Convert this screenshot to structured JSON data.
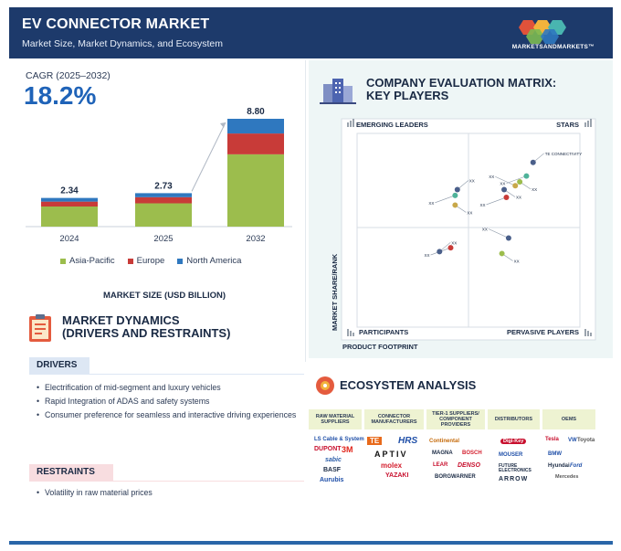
{
  "header": {
    "title": "EV CONNECTOR MARKET",
    "subtitle": "Market Size, Market Dynamics, and Ecosystem",
    "brand": "MARKETSANDMARKETS™"
  },
  "cagr": {
    "label": "CAGR (2025–2032)",
    "value": "18.2%"
  },
  "colors": {
    "asia_pacific": "#9cbd4d",
    "europe": "#c83b38",
    "north_america": "#2f78bf",
    "header": "#1d3a6b"
  },
  "chart_data": {
    "type": "bar",
    "stacked": true,
    "categories": [
      "2024",
      "2025",
      "2032"
    ],
    "totals": [
      2.34,
      2.73,
      8.8
    ],
    "total_labels": [
      "2.34",
      "2.73",
      "8.80"
    ],
    "series": [
      {
        "name": "Asia-Pacific",
        "values": [
          1.64,
          1.9,
          5.9
        ]
      },
      {
        "name": "Europe",
        "values": [
          0.4,
          0.5,
          1.7
        ]
      },
      {
        "name": "North America",
        "values": [
          0.3,
          0.33,
          1.2
        ]
      }
    ],
    "xlabel": "MARKET SIZE (USD BILLION)",
    "legend_position": "bottom"
  },
  "dynamics": {
    "title_line1": "MARKET DYNAMICS",
    "title_line2": "(DRIVERS AND RESTRAINTS)",
    "drivers_label": "DRIVERS",
    "drivers": [
      "Electrification of mid-segment and luxury vehicles",
      "Rapid Integration of ADAS and safety systems",
      "Consumer preference for seamless and interactive driving experiences"
    ],
    "restraints_label": "RESTRAINTS",
    "restraints": [
      "Volatility in raw material prices"
    ]
  },
  "matrix": {
    "title_line1": "COMPANY EVALUATION MATRIX:",
    "title_line2": "KEY PLAYERS",
    "quadrants": {
      "top_left": "EMERGING LEADERS",
      "top_right": "STARS",
      "bottom_left": "PARTICIPANTS",
      "bottom_right": "PERVASIVE PLAYERS"
    },
    "y_axis": "MARKET SHARE/RANK",
    "x_axis": "PRODUCT FOOTPRINT",
    "players": [
      {
        "label": "TE CONNECTIVITY",
        "x": 0.79,
        "y": 0.85,
        "color": "#4a5f8a"
      },
      {
        "label": "XX",
        "x": 0.76,
        "y": 0.78,
        "color": "#4fb39a"
      },
      {
        "label": "XX",
        "x": 0.73,
        "y": 0.75,
        "color": "#9cbd4d"
      },
      {
        "label": "XX",
        "x": 0.71,
        "y": 0.73,
        "color": "#c8a84a"
      },
      {
        "label": "XX",
        "x": 0.66,
        "y": 0.71,
        "color": "#4a5f8a"
      },
      {
        "label": "XX",
        "x": 0.67,
        "y": 0.67,
        "color": "#c83b38"
      },
      {
        "label": "XX",
        "x": 0.45,
        "y": 0.71,
        "color": "#4a5f8a"
      },
      {
        "label": "XX",
        "x": 0.44,
        "y": 0.68,
        "color": "#4fb39a"
      },
      {
        "label": "XX",
        "x": 0.44,
        "y": 0.63,
        "color": "#c8a84a"
      },
      {
        "label": "XX",
        "x": 0.68,
        "y": 0.46,
        "color": "#4a5f8a"
      },
      {
        "label": "XX",
        "x": 0.65,
        "y": 0.38,
        "color": "#9cbd4d"
      },
      {
        "label": "XX",
        "x": 0.42,
        "y": 0.41,
        "color": "#c83b38"
      },
      {
        "label": "XX",
        "x": 0.37,
        "y": 0.39,
        "color": "#4a5f8a"
      }
    ]
  },
  "ecosystem": {
    "title": "ECOSYSTEM ANALYSIS",
    "columns": [
      {
        "header": "RAW MATERIAL SUPPLIERS",
        "logos": [
          "LS Cable & System",
          "DUPONT",
          "3M",
          "sabic",
          "BASF",
          "Aurubis"
        ]
      },
      {
        "header": "CONNECTOR MANUFACTURERS",
        "logos": [
          "TE",
          "HRS",
          "APTIV",
          "molex",
          "YAZAKI"
        ]
      },
      {
        "header": "TIER-1 SUPPLIERS/ COMPONENT PROVIDERS",
        "logos": [
          "Continental",
          "MAGNA",
          "BOSCH",
          "LEAR",
          "DENSO",
          "BORGWARNER"
        ]
      },
      {
        "header": "DISTRIBUTORS",
        "logos": [
          "Digi-Key",
          "MOUSER",
          "FUTURE ELECTRONICS",
          "ARROW"
        ]
      },
      {
        "header": "OEMS",
        "logos": [
          "Tesla",
          "VW",
          "Toyota",
          "BMW",
          "Hyundai",
          "Mercedes",
          "Ford"
        ]
      }
    ]
  }
}
